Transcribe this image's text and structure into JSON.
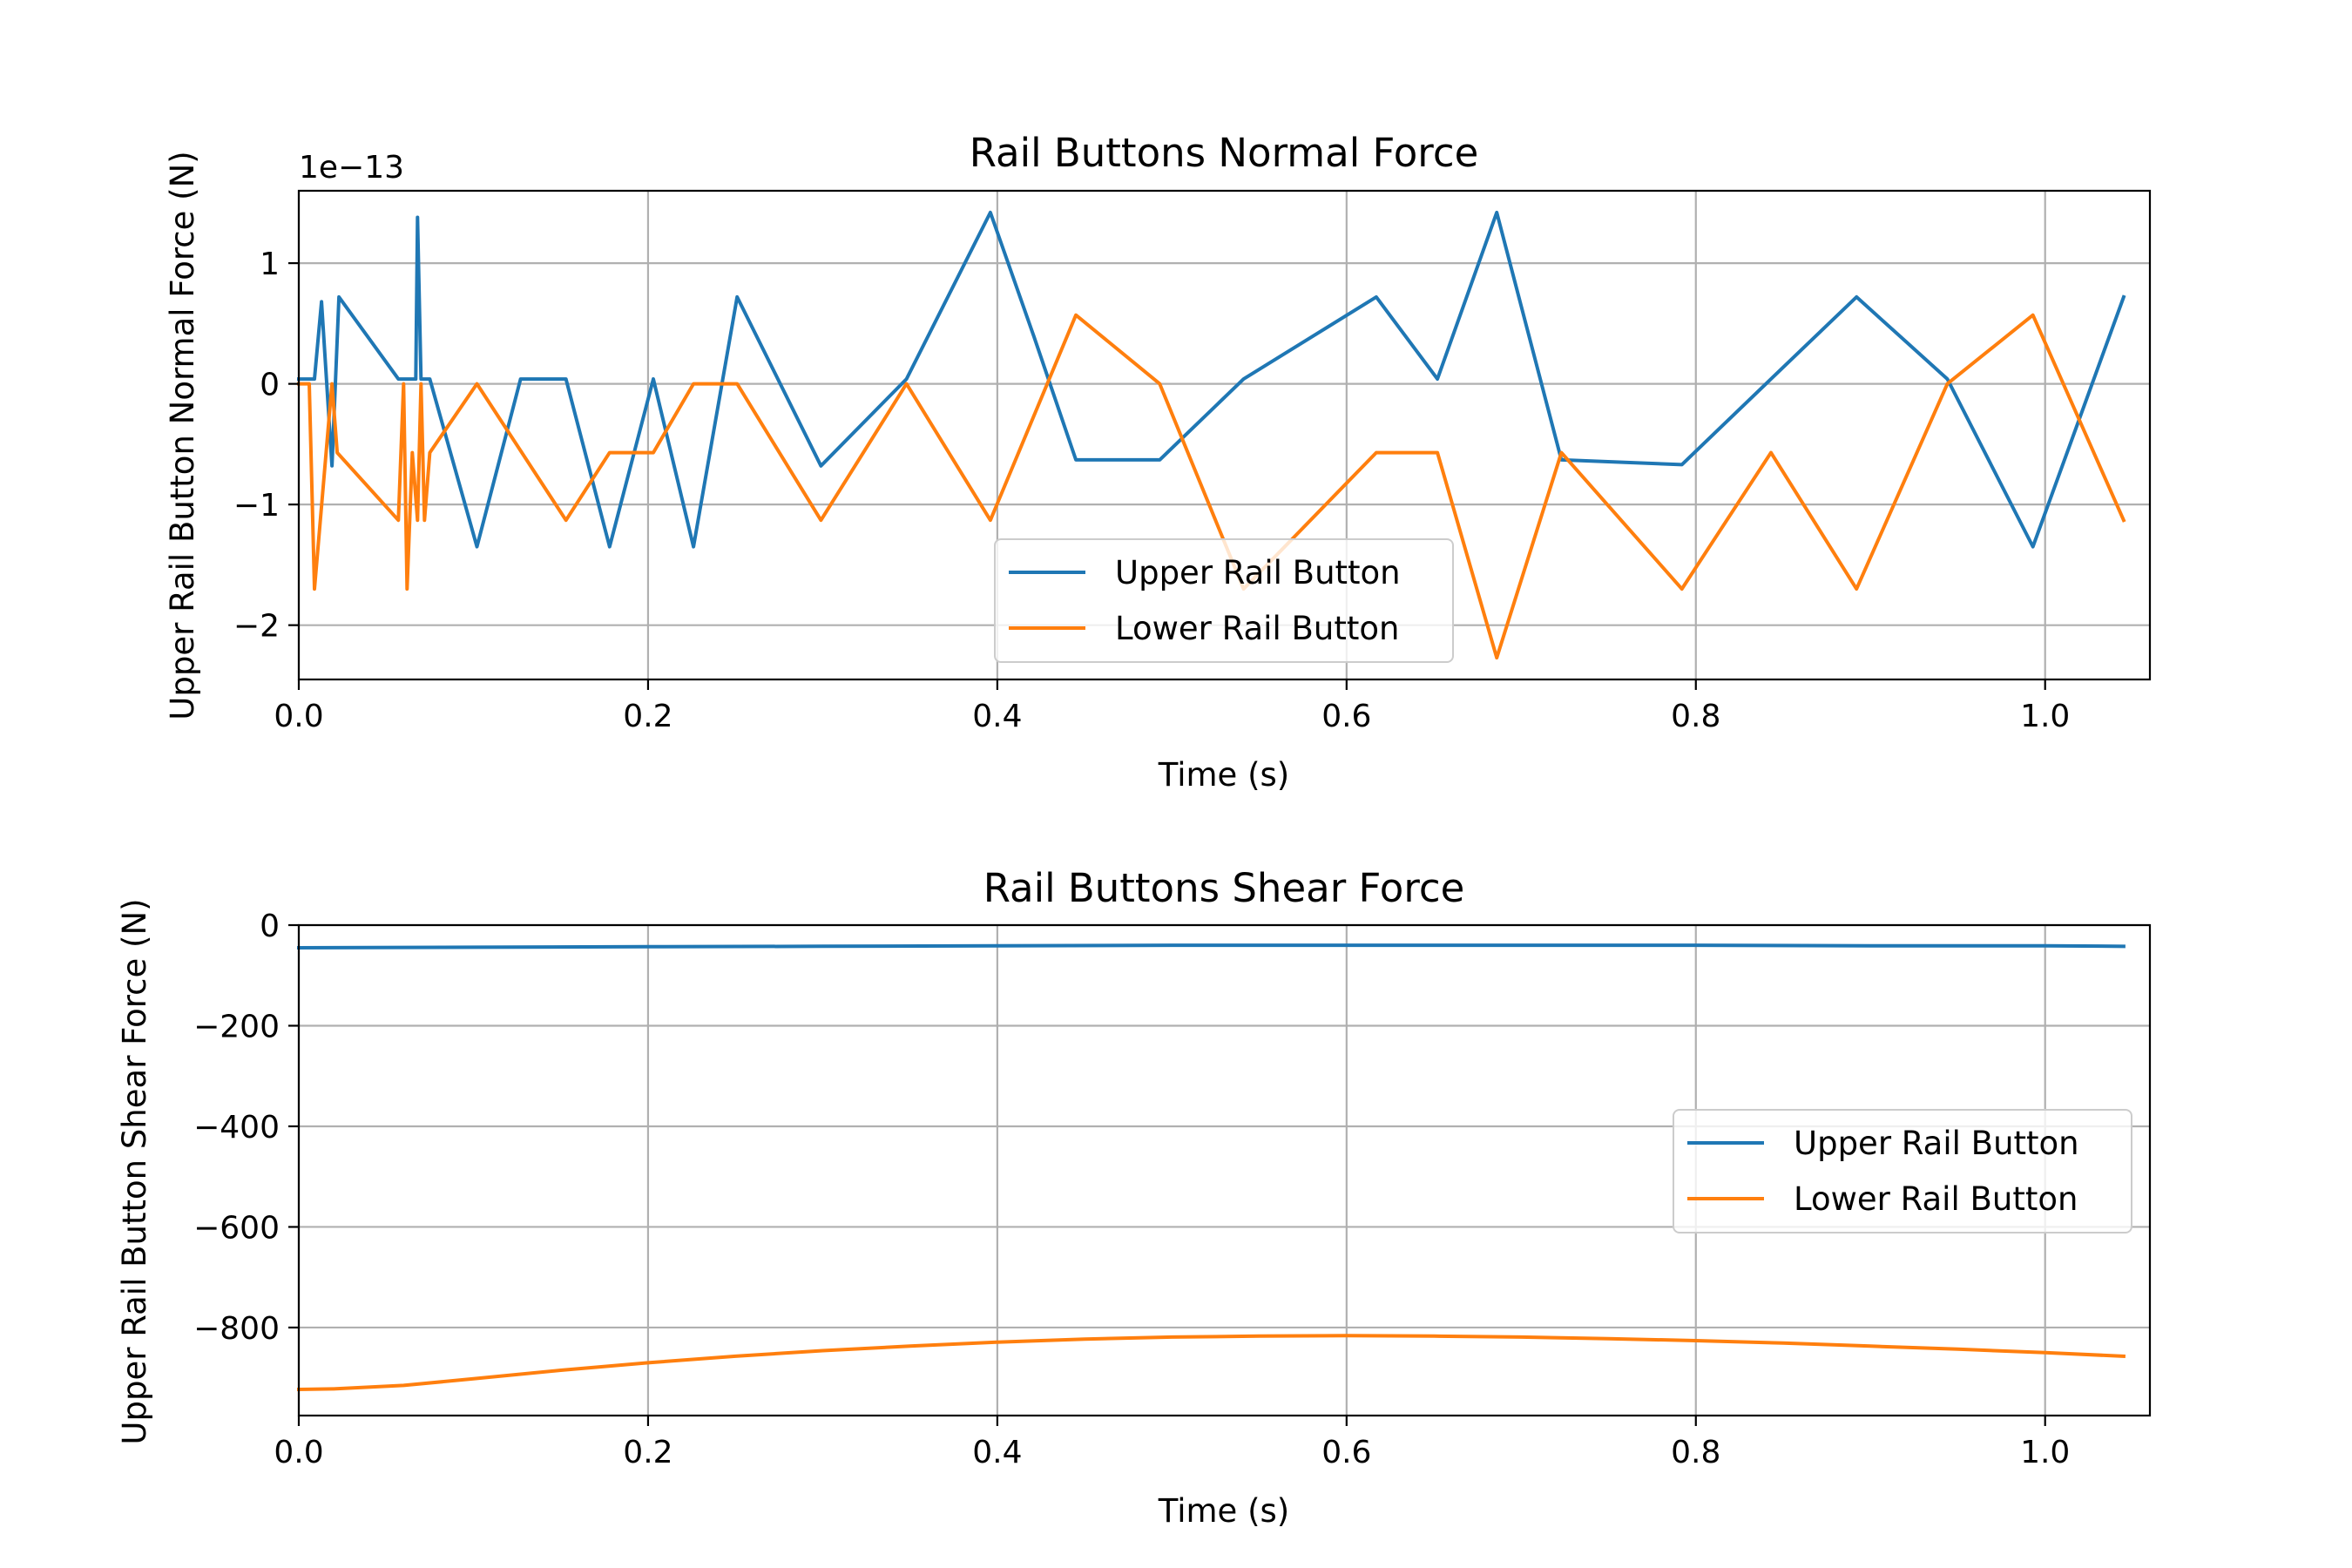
{
  "chart_data": [
    {
      "type": "line",
      "title": "Rail Buttons Normal Force",
      "xlabel": "Time (s)",
      "ylabel": "Upper Rail Button Normal Force (N)",
      "y_offset_text": "1e−13",
      "xlim": [
        0.0,
        1.06
      ],
      "ylim": [
        -2.45,
        1.6
      ],
      "xticks": [
        0.0,
        0.2,
        0.4,
        0.6,
        0.8,
        1.0
      ],
      "xtick_labels": [
        "0.0",
        "0.2",
        "0.4",
        "0.6",
        "0.8",
        "1.0"
      ],
      "yticks": [
        1,
        0,
        -1,
        -2
      ],
      "ytick_labels": [
        "1",
        "0",
        "−1",
        "−2"
      ],
      "grid": true,
      "legend_position": "lower-center",
      "series": [
        {
          "name": "Upper Rail Button",
          "color": "#1f77b4",
          "x": [
            0.0,
            0.009,
            0.013,
            0.019,
            0.023,
            0.057,
            0.067,
            0.068,
            0.07,
            0.075,
            0.102,
            0.127,
            0.153,
            0.178,
            0.203,
            0.226,
            0.251,
            0.299,
            0.348,
            0.396,
            0.421,
            0.445,
            0.493,
            0.541,
            0.617,
            0.652,
            0.686,
            0.723,
            0.792,
            0.843,
            0.892,
            0.944,
            0.993,
            1.045
          ],
          "y": [
            0.04,
            0.04,
            0.68,
            -0.68,
            0.72,
            0.04,
            0.04,
            1.38,
            0.04,
            0.04,
            -1.35,
            0.04,
            0.04,
            -1.35,
            0.04,
            -1.35,
            0.72,
            -0.68,
            0.04,
            1.42,
            0.39,
            -0.63,
            -0.63,
            0.04,
            0.72,
            0.04,
            1.42,
            -0.63,
            -0.67,
            0.04,
            0.72,
            0.04,
            -1.35,
            0.72
          ]
        },
        {
          "name": "Lower Rail Button",
          "color": "#ff7f0e",
          "x": [
            0.0,
            0.006,
            0.009,
            0.019,
            0.022,
            0.057,
            0.06,
            0.062,
            0.065,
            0.068,
            0.07,
            0.072,
            0.075,
            0.102,
            0.153,
            0.178,
            0.203,
            0.226,
            0.251,
            0.299,
            0.348,
            0.396,
            0.445,
            0.493,
            0.541,
            0.617,
            0.652,
            0.686,
            0.723,
            0.792,
            0.843,
            0.892,
            0.944,
            0.993,
            1.045
          ],
          "y": [
            0.0,
            0.0,
            -1.7,
            0.0,
            -0.57,
            -1.13,
            0.0,
            -1.7,
            -0.57,
            -1.13,
            0.0,
            -1.13,
            -0.57,
            0.0,
            -1.13,
            -0.57,
            -0.57,
            0.0,
            0.0,
            -1.13,
            0.0,
            -1.13,
            0.57,
            0.0,
            -1.7,
            -0.57,
            -0.57,
            -2.27,
            -0.57,
            -1.7,
            -0.57,
            -1.7,
            0.0,
            0.57,
            -1.13
          ]
        }
      ]
    },
    {
      "type": "line",
      "title": "Rail Buttons Shear Force",
      "xlabel": "Time (s)",
      "ylabel": "Upper Rail Button Shear Force (N)",
      "xlim": [
        0.0,
        1.06
      ],
      "ylim": [
        -975,
        0
      ],
      "xticks": [
        0.0,
        0.2,
        0.4,
        0.6,
        0.8,
        1.0
      ],
      "xtick_labels": [
        "0.0",
        "0.2",
        "0.4",
        "0.6",
        "0.8",
        "1.0"
      ],
      "yticks": [
        0,
        -200,
        -400,
        -600,
        -800
      ],
      "ytick_labels": [
        "0",
        "−200",
        "−400",
        "−600",
        "−800"
      ],
      "grid": true,
      "legend_position": "center-right",
      "series": [
        {
          "name": "Upper Rail Button",
          "color": "#1f77b4",
          "x": [
            0.0,
            0.1,
            0.2,
            0.3,
            0.4,
            0.5,
            0.6,
            0.7,
            0.8,
            0.9,
            1.0,
            1.045
          ],
          "y": [
            -45,
            -44,
            -43,
            -42,
            -41,
            -40,
            -40,
            -40,
            -40,
            -41,
            -41,
            -42
          ]
        },
        {
          "name": "Lower Rail Button",
          "color": "#ff7f0e",
          "x": [
            0.0,
            0.02,
            0.06,
            0.1,
            0.15,
            0.2,
            0.25,
            0.3,
            0.35,
            0.4,
            0.45,
            0.5,
            0.55,
            0.6,
            0.65,
            0.7,
            0.75,
            0.8,
            0.85,
            0.9,
            0.95,
            1.0,
            1.045
          ],
          "y": [
            -923,
            -922,
            -915,
            -902,
            -885,
            -870,
            -857,
            -846,
            -837,
            -829,
            -823,
            -819,
            -817,
            -816,
            -817,
            -819,
            -822,
            -826,
            -831,
            -837,
            -843,
            -850,
            -857
          ]
        }
      ]
    }
  ]
}
